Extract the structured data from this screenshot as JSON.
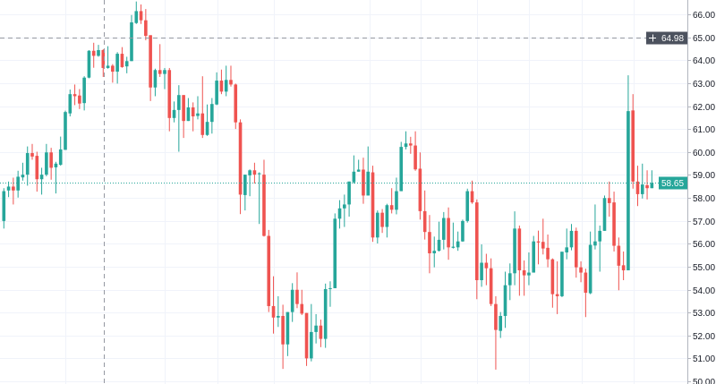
{
  "chart_data": {
    "type": "candlestick",
    "title": "",
    "xlabel": "",
    "ylabel": "",
    "ylim": [
      50,
      66.6
    ],
    "grid": true,
    "y_ticks": [
      "66.00",
      "65.00",
      "64.00",
      "63.00",
      "62.00",
      "61.00",
      "60.00",
      "59.00",
      "58.00",
      "57.00",
      "56.00",
      "55.00",
      "54.00",
      "53.00",
      "52.00",
      "51.00",
      "50.00"
    ],
    "crosshair_price": "64.98",
    "last_price": "58.65",
    "colors": {
      "up": "#26a69a",
      "down": "#ef5350",
      "grid": "#f0f3fa",
      "crosshair": "#9598a1",
      "crosshair_label": "#4c525e",
      "axis_text": "#131722"
    },
    "ohlc_fields": [
      "open",
      "high",
      "low",
      "close"
    ],
    "ohlc": [
      [
        56.99,
        58.42,
        56.66,
        58.29
      ],
      [
        58.32,
        58.71,
        58.03,
        58.49
      ],
      [
        58.49,
        58.88,
        57.71,
        58.32
      ],
      [
        58.32,
        59.18,
        58.01,
        58.92
      ],
      [
        58.89,
        59.53,
        58.75,
        59.01
      ],
      [
        59.01,
        60.24,
        58.53,
        59.95
      ],
      [
        59.95,
        60.35,
        59.66,
        59.8
      ],
      [
        59.83,
        60.01,
        58.27,
        58.81
      ],
      [
        58.81,
        59.31,
        58.14,
        59.01
      ],
      [
        59.01,
        60.35,
        58.94,
        59.98
      ],
      [
        59.98,
        60.18,
        58.79,
        59.31
      ],
      [
        59.33,
        59.57,
        58.19,
        59.49
      ],
      [
        59.44,
        60.67,
        59.4,
        60.11
      ],
      [
        60.09,
        61.8,
        60.09,
        61.74
      ],
      [
        61.68,
        62.72,
        61.55,
        62.52
      ],
      [
        62.52,
        62.94,
        62.04,
        62.43
      ],
      [
        62.46,
        62.74,
        61.87,
        62.11
      ],
      [
        62.13,
        63.3,
        61.81,
        63.24
      ],
      [
        63.24,
        64.44,
        63.21,
        64.41
      ],
      [
        64.41,
        64.76,
        63.67,
        64.19
      ],
      [
        64.19,
        64.67,
        64.15,
        64.44
      ],
      [
        64.44,
        64.48,
        63.27,
        63.66
      ],
      [
        63.66,
        64.61,
        63.63,
        63.76
      ],
      [
        63.76,
        63.83,
        63.02,
        63.5
      ],
      [
        63.5,
        64.35,
        62.98,
        64.28
      ],
      [
        64.28,
        64.57,
        63.67,
        63.7
      ],
      [
        63.73,
        64.15,
        63.43,
        63.96
      ],
      [
        63.96,
        65.97,
        63.96,
        65.65
      ],
      [
        65.62,
        66.56,
        65.58,
        66.14
      ],
      [
        66.14,
        66.43,
        65.58,
        65.74
      ],
      [
        65.74,
        66.23,
        64.87,
        65.06
      ],
      [
        65.09,
        65.09,
        62.22,
        62.81
      ],
      [
        62.81,
        63.63,
        62.43,
        63.57
      ],
      [
        63.57,
        64.7,
        63.27,
        63.4
      ],
      [
        63.4,
        63.66,
        62.74,
        63.57
      ],
      [
        63.57,
        63.66,
        60.9,
        61.48
      ],
      [
        61.48,
        62.2,
        61.29,
        61.83
      ],
      [
        61.83,
        62.91,
        60.01,
        62.48
      ],
      [
        62.48,
        62.48,
        60.61,
        61.35
      ],
      [
        61.35,
        62.35,
        61.35,
        61.94
      ],
      [
        61.94,
        62.16,
        60.9,
        61.55
      ],
      [
        61.57,
        62.43,
        61.42,
        61.68
      ],
      [
        61.68,
        63.3,
        60.61,
        60.74
      ],
      [
        60.74,
        62.07,
        60.7,
        61.31
      ],
      [
        61.31,
        62.35,
        60.8,
        62.09
      ],
      [
        62.07,
        63.47,
        62.04,
        63.11
      ],
      [
        63.11,
        63.59,
        62.52,
        62.63
      ],
      [
        62.63,
        63.76,
        62.43,
        63.14
      ],
      [
        63.14,
        63.76,
        62.85,
        62.94
      ],
      [
        62.94,
        62.98,
        61.0,
        61.29
      ],
      [
        61.29,
        61.42,
        57.29,
        58.14
      ],
      [
        58.12,
        59.01,
        57.45,
        59.01
      ],
      [
        58.98,
        59.24,
        58.07,
        59.2
      ],
      [
        59.2,
        59.53,
        58.62,
        59.01
      ],
      [
        59.05,
        59.11,
        56.86,
        59.07
      ],
      [
        59.01,
        59.66,
        56.31,
        56.34
      ],
      [
        56.34,
        56.6,
        53.02,
        53.28
      ],
      [
        53.28,
        54.58,
        52.08,
        52.78
      ],
      [
        52.78,
        53.71,
        52.37,
        52.85
      ],
      [
        52.85,
        53.34,
        50.54,
        51.61
      ],
      [
        51.61,
        53.02,
        51.1,
        53.02
      ],
      [
        53.02,
        54.28,
        52.59,
        53.99
      ],
      [
        53.99,
        54.75,
        53.19,
        53.37
      ],
      [
        53.37,
        53.99,
        52.89,
        52.95
      ],
      [
        52.98,
        52.98,
        50.67,
        51.0
      ],
      [
        51.0,
        53.37,
        50.87,
        52.15
      ],
      [
        52.15,
        52.93,
        51.65,
        52.43
      ],
      [
        52.43,
        52.69,
        51.49,
        51.85
      ],
      [
        51.85,
        54.26,
        51.46,
        54.02
      ],
      [
        54.02,
        54.36,
        53.25,
        54.06
      ],
      [
        54.06,
        57.32,
        54.06,
        57.09
      ],
      [
        57.09,
        57.9,
        56.66,
        57.54
      ],
      [
        57.54,
        58.14,
        56.73,
        57.71
      ],
      [
        57.71,
        58.71,
        57.18,
        58.71
      ],
      [
        58.68,
        59.85,
        58.62,
        59.14
      ],
      [
        59.14,
        59.66,
        59.14,
        59.23
      ],
      [
        59.23,
        59.75,
        57.74,
        58.1
      ],
      [
        58.1,
        60.24,
        58.1,
        59.14
      ],
      [
        59.11,
        59.4,
        56.08,
        56.27
      ],
      [
        56.27,
        57.45,
        56.01,
        57.35
      ],
      [
        57.35,
        57.51,
        56.47,
        56.73
      ],
      [
        56.73,
        57.74,
        56.27,
        57.68
      ],
      [
        57.68,
        58.42,
        57.32,
        57.48
      ],
      [
        57.48,
        58.88,
        57.28,
        58.29
      ],
      [
        58.29,
        60.44,
        58.29,
        60.22
      ],
      [
        60.22,
        60.9,
        60.11,
        60.37
      ],
      [
        60.37,
        60.66,
        59.92,
        60.28
      ],
      [
        60.28,
        60.9,
        59.18,
        59.24
      ],
      [
        59.27,
        59.98,
        57.05,
        57.42
      ],
      [
        57.42,
        58.32,
        56.18,
        56.51
      ],
      [
        56.51,
        57.25,
        54.71,
        55.58
      ],
      [
        55.58,
        56.31,
        54.97,
        55.69
      ],
      [
        55.69,
        56.96,
        55.66,
        56.17
      ],
      [
        56.17,
        57.38,
        55.75,
        57.12
      ],
      [
        57.12,
        57.58,
        55.3,
        55.84
      ],
      [
        55.82,
        56.92,
        55.79,
        55.87
      ],
      [
        55.84,
        56.53,
        55.69,
        56.1
      ],
      [
        56.1,
        57.05,
        56.08,
        56.99
      ],
      [
        56.99,
        58.4,
        56.92,
        58.29
      ],
      [
        58.29,
        58.75,
        57.74,
        57.8
      ],
      [
        57.8,
        57.93,
        53.58,
        54.41
      ],
      [
        54.41,
        55.97,
        54.12,
        55.17
      ],
      [
        55.17,
        55.56,
        54.19,
        54.93
      ],
      [
        54.93,
        55.36,
        53.28,
        53.37
      ],
      [
        53.37,
        53.71,
        50.51,
        52.24
      ],
      [
        52.2,
        53.02,
        51.89,
        52.85
      ],
      [
        52.85,
        54.78,
        52.33,
        54.19
      ],
      [
        54.19,
        55.14,
        53.54,
        54.71
      ],
      [
        54.71,
        57.41,
        54.19,
        56.66
      ],
      [
        56.66,
        56.79,
        53.73,
        54.84
      ],
      [
        54.84,
        55.27,
        53.73,
        54.62
      ],
      [
        54.62,
        55.62,
        54.19,
        54.74
      ],
      [
        54.74,
        56.34,
        54.74,
        56.1
      ],
      [
        56.1,
        56.57,
        55.1,
        56.05
      ],
      [
        56.08,
        57.09,
        55.53,
        55.79
      ],
      [
        55.82,
        56.4,
        54.97,
        55.32
      ],
      [
        55.32,
        55.36,
        53.21,
        53.8
      ],
      [
        53.8,
        55.23,
        52.93,
        53.71
      ],
      [
        53.71,
        55.65,
        53.67,
        55.65
      ],
      [
        55.62,
        56.66,
        55.32,
        55.84
      ],
      [
        55.84,
        56.86,
        55.71,
        56.56
      ],
      [
        56.56,
        56.7,
        54.52,
        54.97
      ],
      [
        54.97,
        55.23,
        54.32,
        54.74
      ],
      [
        54.74,
        54.91,
        52.8,
        53.86
      ],
      [
        53.84,
        56.53,
        53.8,
        55.95
      ],
      [
        55.92,
        57.71,
        55.75,
        56.1
      ],
      [
        56.1,
        56.79,
        54.78,
        56.56
      ],
      [
        56.56,
        58.1,
        56.56,
        57.99
      ],
      [
        57.99,
        58.71,
        57.18,
        57.77
      ],
      [
        57.8,
        58.27,
        55.66,
        55.91
      ],
      [
        55.91,
        56.27,
        53.97,
        55.04
      ],
      [
        55.06,
        55.66,
        54.41,
        54.84
      ],
      [
        54.84,
        63.34,
        54.84,
        61.78
      ],
      [
        61.81,
        62.52,
        58.4,
        58.71
      ],
      [
        58.71,
        59.4,
        57.64,
        58.16
      ],
      [
        58.16,
        59.49,
        57.97,
        58.58
      ],
      [
        58.55,
        59.2,
        57.93,
        58.42
      ],
      [
        58.42,
        59.2,
        58.42,
        58.65
      ]
    ]
  },
  "crosshair": {
    "icon": "plus-icon"
  }
}
